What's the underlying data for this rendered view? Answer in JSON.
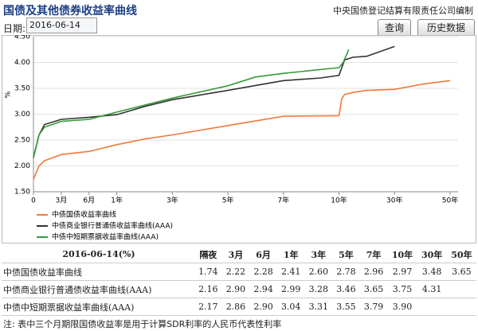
{
  "header": {
    "title": "国债及其他债券收益率曲线",
    "publisher": "中央国债登记结算有限责任公司编制"
  },
  "controls": {
    "date_label": "日期:",
    "date_value": "2016-06-14",
    "query_button": "查询",
    "history_button": "历史数据"
  },
  "chart_data": {
    "type": "line",
    "y_label": "%",
    "xlim": [
      0,
      50
    ],
    "ylim": [
      1.5,
      4.5
    ],
    "xticks": [
      {
        "value": 0,
        "label": "0"
      },
      {
        "value": 0.25,
        "label": "3月"
      },
      {
        "value": 0.5,
        "label": "6月"
      },
      {
        "value": 1,
        "label": "1年"
      },
      {
        "value": 3,
        "label": "3年"
      },
      {
        "value": 5,
        "label": "5年"
      },
      {
        "value": 7,
        "label": "7年"
      },
      {
        "value": 10,
        "label": "10年"
      },
      {
        "value": 30,
        "label": "30年"
      },
      {
        "value": 50,
        "label": "50年"
      }
    ],
    "yticks": [
      {
        "value": 1.5,
        "label": "1.50"
      },
      {
        "value": 2,
        "label": "2.00"
      },
      {
        "value": 2.5,
        "label": "2.50"
      },
      {
        "value": 3,
        "label": "3.00"
      },
      {
        "value": 3.5,
        "label": "3.50"
      },
      {
        "value": 4,
        "label": "4.00"
      },
      {
        "value": 4.5,
        "label": "4.50"
      }
    ],
    "series": [
      {
        "name": "中债国债收益率曲线",
        "color": "#f07a3c",
        "x": [
          0,
          0.05,
          0.1,
          0.15,
          0.25,
          0.5,
          1,
          2,
          3,
          5,
          7,
          10,
          11,
          12,
          15,
          20,
          30,
          40,
          50
        ],
        "values": [
          1.74,
          2.0,
          2.1,
          2.14,
          2.22,
          2.28,
          2.41,
          2.52,
          2.6,
          2.78,
          2.96,
          2.97,
          3.3,
          3.38,
          3.42,
          3.46,
          3.48,
          3.58,
          3.65
        ]
      },
      {
        "name": "中债商业银行普通债收益率曲线(AAA)",
        "color": "#333333",
        "x": [
          0,
          0.05,
          0.1,
          0.25,
          0.5,
          1,
          2,
          3,
          5,
          7,
          9,
          10,
          12,
          15,
          20,
          30
        ],
        "values": [
          2.16,
          2.6,
          2.8,
          2.9,
          2.94,
          2.99,
          3.15,
          3.28,
          3.46,
          3.65,
          3.7,
          3.75,
          4.05,
          4.1,
          4.12,
          4.31
        ]
      },
      {
        "name": "中债中短期票据收益率曲线(AAA)",
        "color": "#3a9a3a",
        "x": [
          0,
          0.05,
          0.1,
          0.25,
          0.5,
          1,
          3,
          5,
          6,
          7,
          10,
          11.5,
          13.5
        ],
        "values": [
          2.17,
          2.6,
          2.75,
          2.86,
          2.9,
          3.04,
          3.31,
          3.55,
          3.72,
          3.79,
          3.9,
          4.0,
          4.25
        ]
      }
    ]
  },
  "table": {
    "header": [
      "2016-06-14(%)",
      "隔夜",
      "3月",
      "6月",
      "1年",
      "3年",
      "5年",
      "7年",
      "10年",
      "30年",
      "50年"
    ],
    "rows": [
      [
        "中债国债收益率曲线",
        "1.74",
        "2.22",
        "2.28",
        "2.41",
        "2.60",
        "2.78",
        "2.96",
        "2.97",
        "3.48",
        "3.65"
      ],
      [
        "中债商业银行普通债收益率曲线(AAA)",
        "2.16",
        "2.90",
        "2.94",
        "2.99",
        "3.28",
        "3.46",
        "3.65",
        "3.75",
        "4.31",
        ""
      ],
      [
        "中债中短期票据收益率曲线(AAA)",
        "2.17",
        "2.86",
        "2.90",
        "3.04",
        "3.31",
        "3.55",
        "3.79",
        "3.90",
        "",
        ""
      ]
    ]
  },
  "note": "注:    表中三个月期限国债收益率是用于计算SDR利率的人民币代表性利率"
}
